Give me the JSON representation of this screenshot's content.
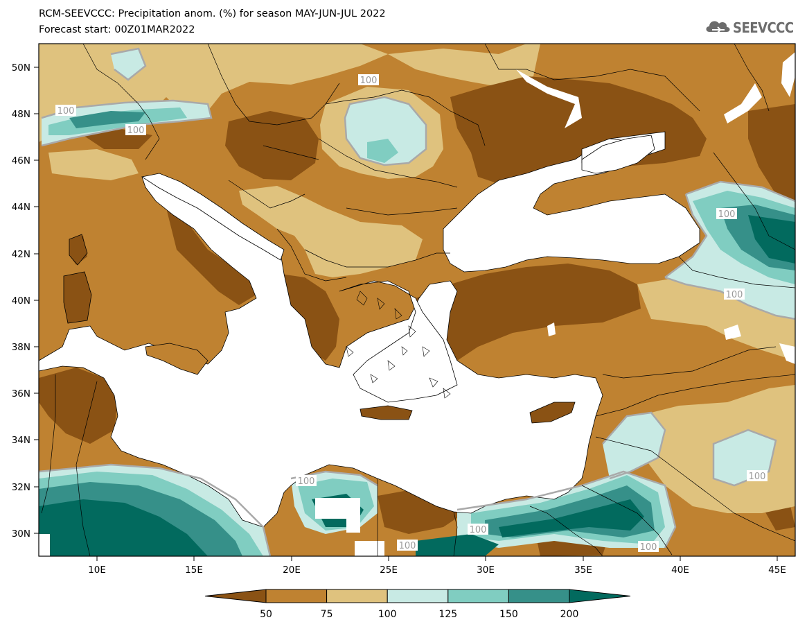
{
  "header": {
    "title_line1": "RCM-SEEVCCC: Precipitation anom. (%) for season MAY-JUN-JUL 2022",
    "title_line2": "Forecast start: 00Z01MAR2022"
  },
  "logo": {
    "text": "SEEVCCC",
    "icon": "cloud-icon"
  },
  "map": {
    "longitude_ticks": [
      "10E",
      "15E",
      "20E",
      "25E",
      "30E",
      "35E",
      "40E",
      "45E"
    ],
    "latitude_ticks": [
      "50N",
      "48N",
      "46N",
      "44N",
      "42N",
      "40N",
      "38N",
      "36N",
      "34N",
      "32N",
      "30N"
    ],
    "contour_labels": [
      "100",
      "100",
      "100",
      "100",
      "100",
      "100",
      "100",
      "100",
      "100",
      "100",
      "100"
    ],
    "colors": {
      "lt50": "#8a5214",
      "50_75": "#bf8231",
      "75_100": "#dfc27e",
      "100_125": "#c8eae4",
      "125_150": "#80cdc1",
      "150_200": "#369089",
      "gt200": "#026a5e",
      "sea": "#ffffff",
      "contour_100": "#a9a9a9"
    }
  },
  "colorbar": {
    "labels": [
      "50",
      "75",
      "100",
      "125",
      "150",
      "200"
    ]
  }
}
